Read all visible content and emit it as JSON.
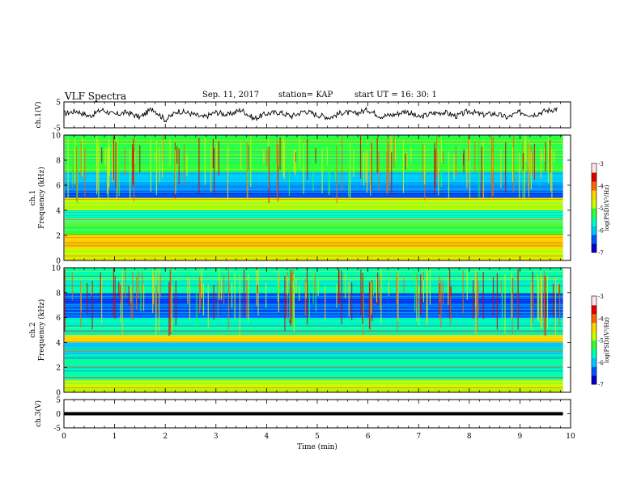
{
  "header": {
    "title": "VLF Spectra",
    "date": "Sep. 11, 2017",
    "station": "station= KAP",
    "start": "start  UT =   16: 30: 1"
  },
  "chart_data": [
    {
      "type": "line",
      "panel": "ch1-waveform",
      "ylabel": "ch.1(V)",
      "ylim": [
        -5,
        5
      ],
      "yticks": [
        "5",
        "-5"
      ],
      "xlim": [
        0,
        10
      ],
      "x": [
        0.0,
        0.25,
        0.5,
        0.75,
        1.0,
        1.25,
        1.5,
        1.75,
        2.0,
        2.25,
        2.5,
        2.75,
        3.0,
        3.25,
        3.5,
        3.75,
        4.0,
        4.25,
        4.5,
        4.75,
        5.0,
        5.25,
        5.5,
        5.75,
        6.0,
        6.25,
        6.5,
        6.75,
        7.0,
        7.25,
        7.5,
        7.75,
        8.0,
        8.25,
        8.5,
        8.75,
        9.0,
        9.25,
        9.5,
        9.75
      ],
      "values": [
        0.5,
        1.5,
        -0.5,
        2.0,
        0.0,
        1.0,
        -1.0,
        2.5,
        -2.0,
        1.5,
        0.5,
        -1.0,
        1.0,
        0.0,
        2.0,
        -1.5,
        0.5,
        1.0,
        -0.5,
        1.5,
        0.0,
        -1.0,
        1.0,
        0.5,
        2.0,
        -0.5,
        0.0,
        1.5,
        -1.0,
        0.5,
        1.0,
        -0.5,
        1.5,
        0.0,
        0.5,
        -1.0,
        1.0,
        0.0,
        1.5,
        2.5
      ]
    },
    {
      "type": "heatmap",
      "panel": "ch1-spectrogram",
      "ylabel": "ch.1 Frequency (kHz)",
      "ylim": [
        0,
        10
      ],
      "yticks": [
        "0",
        "2",
        "4",
        "6",
        "8",
        "10"
      ],
      "xlim": [
        0,
        10
      ],
      "colorbar": {
        "label": "log(PSD)(V²/Hz)",
        "range": [
          -7,
          -3
        ],
        "ticks": [
          "-3",
          "-4",
          "-5",
          "-6",
          "-7"
        ]
      },
      "bands": [
        {
          "freq_khz": [
            0.0,
            1.0
          ],
          "log_psd": -4.8
        },
        {
          "freq_khz": [
            1.0,
            2.0
          ],
          "log_psd": -4.6
        },
        {
          "freq_khz": [
            2.0,
            3.0
          ],
          "log_psd": -5.2
        },
        {
          "freq_khz": [
            3.0,
            4.0
          ],
          "log_psd": -5.4
        },
        {
          "freq_khz": [
            4.0,
            5.0
          ],
          "log_psd": -4.7
        },
        {
          "freq_khz": [
            5.0,
            5.6
          ],
          "log_psd": -6.5
        },
        {
          "freq_khz": [
            5.6,
            7.0
          ],
          "log_psd": -6.0
        },
        {
          "freq_khz": [
            7.0,
            10.0
          ],
          "log_psd": -5.3
        }
      ]
    },
    {
      "type": "heatmap",
      "panel": "ch2-spectrogram",
      "ylabel": "ch.2 Frequency (kHz)",
      "ylim": [
        0,
        10
      ],
      "yticks": [
        "0",
        "2",
        "4",
        "6",
        "8",
        "10"
      ],
      "xlim": [
        0,
        10
      ],
      "colorbar": {
        "label": "log(PSD)(V²/Hz)",
        "range": [
          -7,
          -3
        ],
        "ticks": [
          "-3",
          "-4",
          "-5",
          "-6",
          "-7"
        ]
      },
      "bands": [
        {
          "freq_khz": [
            0.0,
            1.0
          ],
          "log_psd": -5.0
        },
        {
          "freq_khz": [
            1.0,
            2.0
          ],
          "log_psd": -5.8
        },
        {
          "freq_khz": [
            2.0,
            3.0
          ],
          "log_psd": -5.6
        },
        {
          "freq_khz": [
            3.0,
            4.0
          ],
          "log_psd": -5.9
        },
        {
          "freq_khz": [
            4.0,
            4.6
          ],
          "log_psd": -4.3
        },
        {
          "freq_khz": [
            4.6,
            6.0
          ],
          "log_psd": -5.7
        },
        {
          "freq_khz": [
            6.0,
            8.0
          ],
          "log_psd": -6.2
        },
        {
          "freq_khz": [
            8.0,
            10.0
          ],
          "log_psd": -5.6
        }
      ]
    },
    {
      "type": "line",
      "panel": "ch3-waveform",
      "ylabel": "ch.3(V)",
      "ylim": [
        -5,
        5
      ],
      "yticks": [
        "5",
        "0",
        "-5"
      ],
      "xlim": [
        0,
        10
      ],
      "x": [
        0,
        9.85
      ],
      "values": [
        0,
        0
      ]
    }
  ],
  "xaxis": {
    "label": "Time  (min)",
    "ticks": [
      "0",
      "1",
      "2",
      "3",
      "4",
      "5",
      "6",
      "7",
      "8",
      "9",
      "10"
    ]
  },
  "colors": {
    "axis": "#000000",
    "trace": "#000000",
    "colormap": [
      "#0000c8",
      "#0055ff",
      "#00c8ff",
      "#00ffb4",
      "#32ff32",
      "#c8ff00",
      "#ffd200",
      "#ff6400",
      "#dc0000",
      "#ffe6e6"
    ]
  }
}
